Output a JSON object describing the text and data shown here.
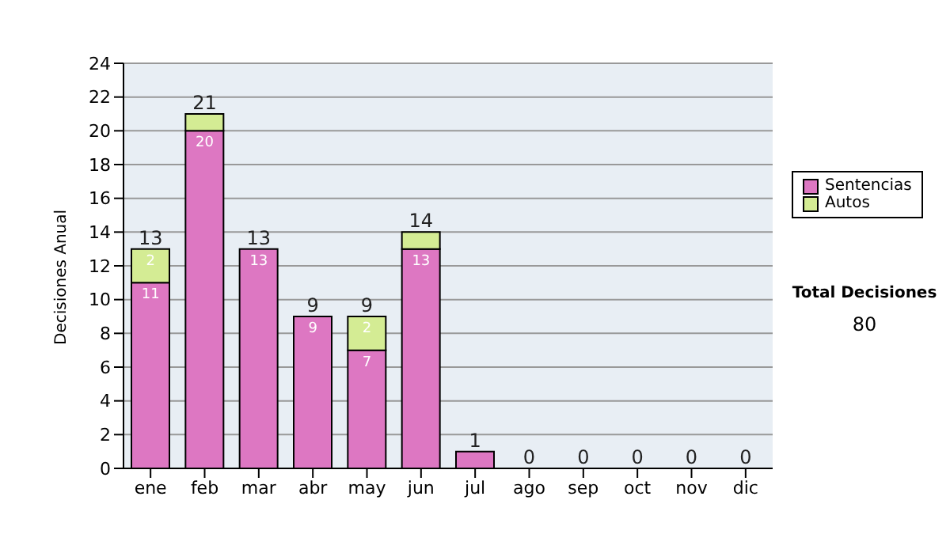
{
  "chart_data": {
    "type": "bar",
    "stacked": true,
    "ylabel": "Decisiones Anual",
    "categories": [
      "ene",
      "feb",
      "mar",
      "abr",
      "may",
      "jun",
      "jul",
      "ago",
      "sep",
      "oct",
      "nov",
      "dic"
    ],
    "series": [
      {
        "name": "Sentencias",
        "color": "#dd77c2",
        "values": [
          11,
          20,
          13,
          9,
          7,
          13,
          1,
          0,
          0,
          0,
          0,
          0
        ],
        "value_labels": [
          "11",
          "20",
          "13",
          "9",
          "7",
          "13",
          null,
          null,
          null,
          null,
          null,
          null
        ]
      },
      {
        "name": "Autos",
        "color": "#d4ec94",
        "values": [
          2,
          1,
          0,
          0,
          2,
          1,
          0,
          0,
          0,
          0,
          0,
          0
        ],
        "value_labels": [
          "2",
          null,
          null,
          null,
          "2",
          null,
          null,
          null,
          null,
          null,
          null,
          null
        ]
      }
    ],
    "totals": [
      "13",
      "21",
      "13",
      "9",
      "9",
      "14",
      "1",
      "0",
      "0",
      "0",
      "0",
      "0"
    ],
    "ylim": [
      0,
      24
    ],
    "yticks": [
      0,
      2,
      4,
      6,
      8,
      10,
      12,
      14,
      16,
      18,
      20,
      22,
      24
    ],
    "grid": "y",
    "legend": "right",
    "annotations": [
      "Total Decisiones",
      "80"
    ]
  }
}
